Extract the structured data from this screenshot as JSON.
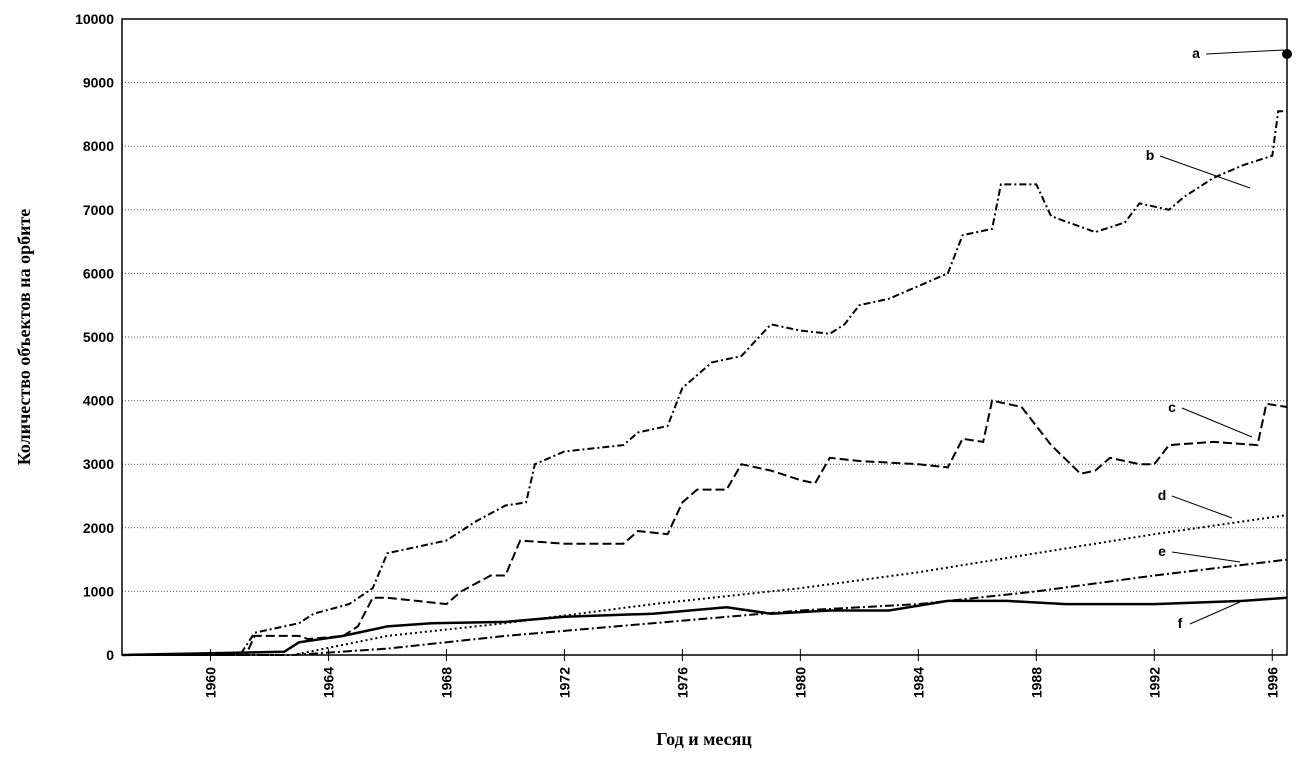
{
  "chart_data": {
    "type": "line",
    "y_label": "Количество объектов на орбите",
    "x_label": "Год и месяц",
    "xlim": [
      1957,
      1996.5
    ],
    "xticks": [
      1960,
      1964,
      1968,
      1972,
      1976,
      1980,
      1984,
      1988,
      1992,
      1996
    ],
    "ylim": [
      0,
      10000
    ],
    "yticks": [
      0,
      1000,
      2000,
      3000,
      4000,
      5000,
      6000,
      7000,
      8000,
      9000,
      10000
    ],
    "grid": true,
    "series": [
      {
        "name": "a",
        "color": "#000000",
        "x": [
          1996.5
        ],
        "values": [
          9450
        ]
      },
      {
        "name": "b",
        "color": "#000000",
        "x": [
          1957,
          1961,
          1961.5,
          1963,
          1963.5,
          1964.7,
          1965.5,
          1966,
          1967,
          1968,
          1969,
          1970,
          1970.7,
          1971,
          1972,
          1973,
          1974,
          1974.5,
          1975.5,
          1976,
          1977,
          1978,
          1979,
          1980,
          1981,
          1981.5,
          1982,
          1983,
          1984,
          1985,
          1985.5,
          1986.5,
          1986.8,
          1988,
          1988.5,
          1990,
          1991,
          1991.5,
          1992.5,
          1993,
          1994,
          1995,
          1996,
          1996.2,
          1996.5
        ],
        "values": [
          0,
          0,
          350,
          500,
          650,
          800,
          1050,
          1600,
          1700,
          1800,
          2100,
          2350,
          2400,
          3000,
          3200,
          3250,
          3300,
          3500,
          3600,
          4200,
          4600,
          4700,
          5200,
          5100,
          5050,
          5200,
          5500,
          5600,
          5800,
          6000,
          6600,
          6700,
          7400,
          7400,
          6900,
          6650,
          6800,
          7100,
          7000,
          7200,
          7500,
          7700,
          7850,
          8550,
          8550
        ]
      },
      {
        "name": "c",
        "color": "#000000",
        "x": [
          1957,
          1961.2,
          1961.5,
          1963,
          1963.3,
          1964.5,
          1965,
          1965.5,
          1966,
          1967,
          1968,
          1968.5,
          1969.5,
          1970,
          1970.5,
          1972,
          1974,
          1974.5,
          1975.5,
          1976,
          1976.5,
          1977.5,
          1978,
          1979,
          1980,
          1980.5,
          1981,
          1982,
          1984,
          1985,
          1985.5,
          1986.2,
          1986.5,
          1987.5,
          1988.5,
          1989.5,
          1990,
          1990.5,
          1991.5,
          1992,
          1992.5,
          1994,
          1995.5,
          1995.8,
          1996.5
        ],
        "values": [
          0,
          0,
          300,
          300,
          250,
          300,
          450,
          900,
          900,
          850,
          800,
          1000,
          1250,
          1250,
          1800,
          1750,
          1750,
          1950,
          1900,
          2400,
          2600,
          2600,
          3000,
          2900,
          2750,
          2700,
          3100,
          3050,
          3000,
          2950,
          3400,
          3350,
          4000,
          3900,
          3300,
          2850,
          2900,
          3100,
          3000,
          3000,
          3300,
          3350,
          3300,
          3950,
          3900
        ]
      },
      {
        "name": "d",
        "color": "#000000",
        "x": [
          1957,
          1962.8,
          1966,
          1970,
          1975,
          1980,
          1984,
          1988,
          1992,
          1996.5
        ],
        "values": [
          0,
          0,
          300,
          500,
          800,
          1050,
          1300,
          1600,
          1900,
          2200
        ]
      },
      {
        "name": "e",
        "color": "#000000",
        "x": [
          1957,
          1962.8,
          1966,
          1970,
          1975,
          1980,
          1984,
          1988,
          1992,
          1996.5
        ],
        "values": [
          0,
          0,
          100,
          300,
          500,
          700,
          800,
          1000,
          1250,
          1500
        ]
      },
      {
        "name": "f",
        "color": "#000000",
        "x": [
          1957,
          1962.5,
          1963,
          1964.5,
          1966,
          1967.5,
          1970,
          1972,
          1975,
          1977.5,
          1979,
          1981,
          1983,
          1985,
          1987,
          1989,
          1992,
          1995,
          1996.5
        ],
        "values": [
          0,
          50,
          200,
          300,
          450,
          500,
          520,
          600,
          650,
          750,
          650,
          700,
          700,
          850,
          850,
          800,
          800,
          850,
          900
        ]
      }
    ]
  }
}
